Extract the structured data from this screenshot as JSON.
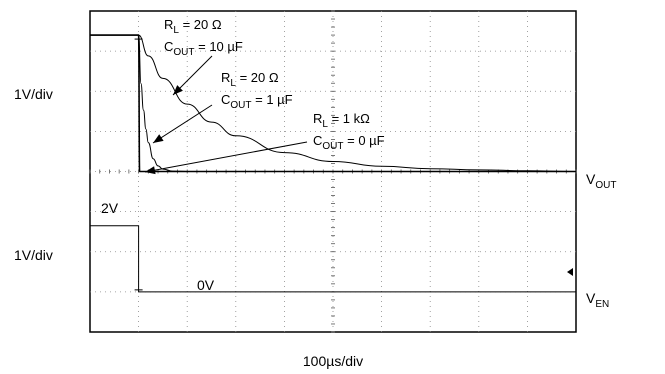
{
  "chart_data": {
    "type": "line",
    "title": "",
    "xlabel": "100µs/div",
    "x_unit": "µs",
    "x_range": [
      0,
      1000
    ],
    "divisions": {
      "x": 10,
      "y": 8
    },
    "grid": true,
    "left_labels": {
      "upper": "1V/div",
      "lower": "1V/div"
    },
    "channel_labels": {
      "vout": {
        "main": "V",
        "sub": "OUT"
      },
      "ven": {
        "main": "V",
        "sub": "EN"
      }
    },
    "level_labels": {
      "high": "2V",
      "low": "0V"
    },
    "annotations": [
      {
        "rl_main": "R",
        "rl_sub": "L",
        "rl_value": " = 20 Ω",
        "c_main": "C",
        "c_sub": "OUT",
        "c_value": " = 10 µF"
      },
      {
        "rl_main": "R",
        "rl_sub": "L",
        "rl_value": " = 20 Ω",
        "c_main": "C",
        "c_sub": "OUT",
        "c_value": " = 1 µF"
      },
      {
        "rl_main": "R",
        "rl_sub": "L",
        "rl_value": " = 1 kΩ",
        "c_main": "C",
        "c_sub": "OUT",
        "c_value": " = 0 µF"
      }
    ],
    "series": [
      {
        "name": "V_EN",
        "units": "V",
        "x": [
          0,
          100,
          100,
          1000
        ],
        "y": [
          2,
          2,
          0,
          0
        ]
      },
      {
        "name": "V_OUT (RL = 20 Ω, COUT = 10 µF)",
        "units": "div",
        "x": [
          0,
          100,
          120,
          150,
          200,
          250,
          300,
          400,
          500,
          600,
          700,
          800,
          900,
          1000
        ],
        "y": [
          3.4,
          3.4,
          2.88,
          2.32,
          1.68,
          1.23,
          0.89,
          0.47,
          0.25,
          0.13,
          0.07,
          0.04,
          0.02,
          0.0
        ]
      },
      {
        "name": "V_OUT (RL = 20 Ω, COUT = 1 µF)",
        "units": "div",
        "x": [
          0,
          100,
          105,
          110,
          115,
          120,
          130,
          140,
          150,
          170,
          200,
          1000
        ],
        "y": [
          3.4,
          3.4,
          2.19,
          1.53,
          1.06,
          0.72,
          0.32,
          0.14,
          0.06,
          0.01,
          0.0,
          0.0
        ]
      },
      {
        "name": "V_OUT (RL = 1 kΩ, COUT = 0 µF)",
        "units": "div",
        "x": [
          0,
          100,
          102,
          1000
        ],
        "y": [
          3.4,
          3.4,
          0.0,
          0.0
        ]
      }
    ]
  }
}
